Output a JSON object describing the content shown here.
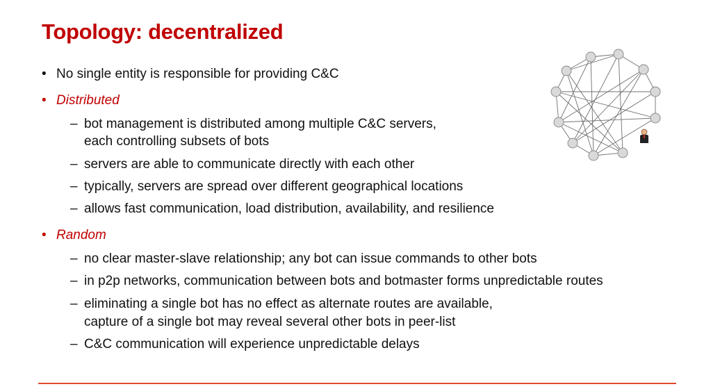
{
  "slide": {
    "title": "Topology: decentralized",
    "bullets": [
      {
        "text": "No single entity is responsible for providing C&C"
      },
      {
        "text": "Distributed",
        "subs": [
          [
            "bot management is distributed among multiple C&C servers,",
            "each controlling subsets of bots"
          ],
          [
            "servers are able to communicate directly with each other"
          ],
          [
            "typically, servers are spread over different geographical locations"
          ],
          [
            "allows fast communication, load distribution, availability, and resilience"
          ]
        ]
      },
      {
        "text": "Random",
        "subs": [
          [
            "no clear master-slave relationship; any bot can issue commands to other bots"
          ],
          [
            "in p2p networks, communication between bots and botmaster forms unpredictable routes"
          ],
          [
            "eliminating a single bot has no effect as alternate routes are available,",
            "capture of a single bot may reveal several other bots in peer-list"
          ],
          [
            "C&C communication will experience unpredictable delays"
          ]
        ]
      }
    ],
    "bullet_symbol": "•",
    "dash_symbol": "–"
  },
  "colors": {
    "accent": "#c00000",
    "rule": "#e04a2a",
    "node_fill": "#d9d9d9",
    "node_stroke": "#8c8c8c",
    "edge": "#707070"
  },
  "icons": {
    "botmaster": "person-icon"
  }
}
